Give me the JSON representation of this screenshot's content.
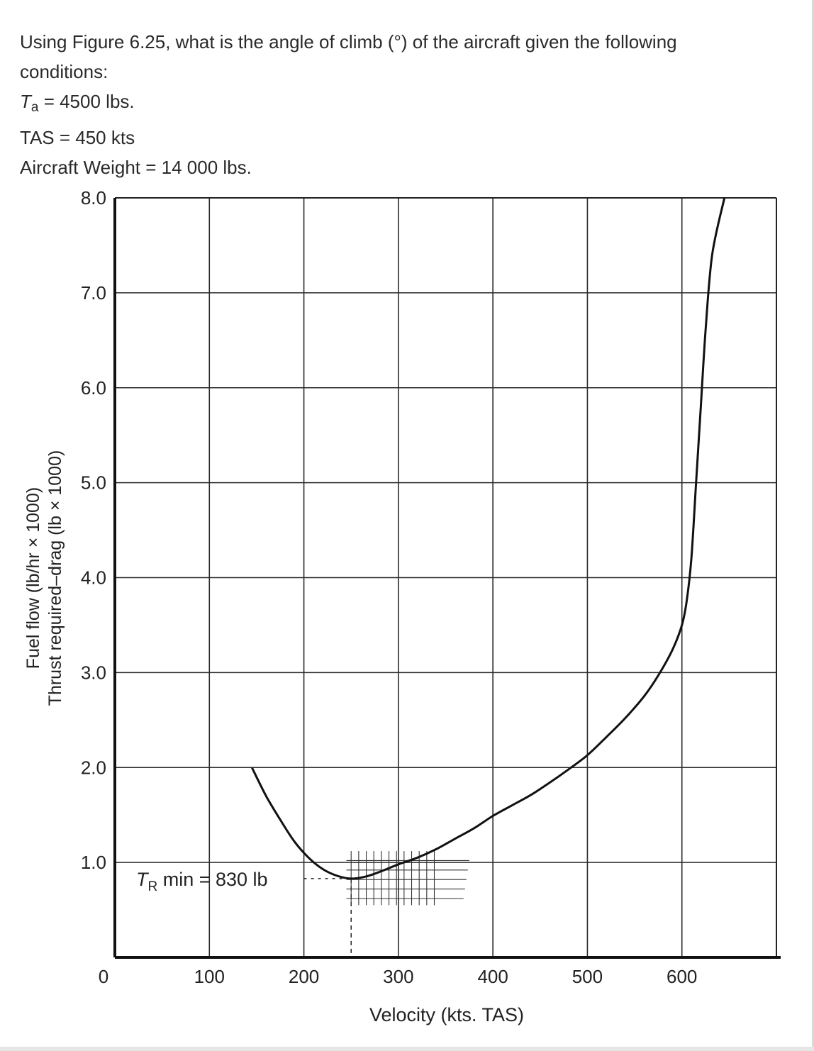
{
  "question": {
    "line1": "Using Figure 6.25, what is the angle of climb (°) of the aircraft given the following",
    "line2": "conditions:",
    "ta_symbol": "T",
    "ta_subscript": "a",
    "ta_value": " = 4500 lbs.",
    "tas": "TAS = 450 kts",
    "weight": "Aircraft Weight = 14 000 lbs."
  },
  "chart_data": {
    "type": "line",
    "title": "",
    "xlabel": "Velocity (kts. TAS)",
    "ylabel_line1": "Fuel flow (lb/hr × 1000)",
    "ylabel_line2": "Thrust required–drag (lb × 1000)",
    "xlim": [
      0,
      700
    ],
    "ylim": [
      0,
      8
    ],
    "x_ticks": [
      0,
      100,
      200,
      300,
      400,
      500,
      600
    ],
    "x_tick_labels": [
      "0",
      "100",
      "200",
      "300",
      "400",
      "500",
      "600"
    ],
    "y_ticks": [
      1,
      2,
      3,
      4,
      5,
      6,
      7,
      8
    ],
    "y_tick_labels": [
      "1.0",
      "2.0",
      "3.0",
      "4.0",
      "5.0",
      "6.0",
      "7.0",
      "8.0"
    ],
    "grid": true,
    "series": [
      {
        "x": [
          145,
          160,
          175,
          190,
          205,
          220,
          235,
          250,
          265,
          280,
          300,
          320,
          340,
          360,
          380,
          400,
          420,
          440,
          460,
          480,
          500,
          520,
          540,
          560,
          575,
          590,
          600,
          605,
          610,
          615,
          620,
          625,
          632,
          645
        ],
        "y": [
          2.0,
          1.7,
          1.45,
          1.22,
          1.05,
          0.93,
          0.86,
          0.83,
          0.85,
          0.9,
          0.98,
          1.05,
          1.14,
          1.25,
          1.36,
          1.49,
          1.6,
          1.71,
          1.84,
          1.98,
          2.13,
          2.32,
          2.52,
          2.75,
          2.97,
          3.24,
          3.5,
          3.75,
          4.2,
          5.0,
          5.8,
          6.6,
          7.4,
          8.0
        ]
      }
    ],
    "annotation": {
      "symbol": "T",
      "subscript": "R",
      "text": " min = 830 lb",
      "x": 250,
      "y": 0.83
    }
  }
}
